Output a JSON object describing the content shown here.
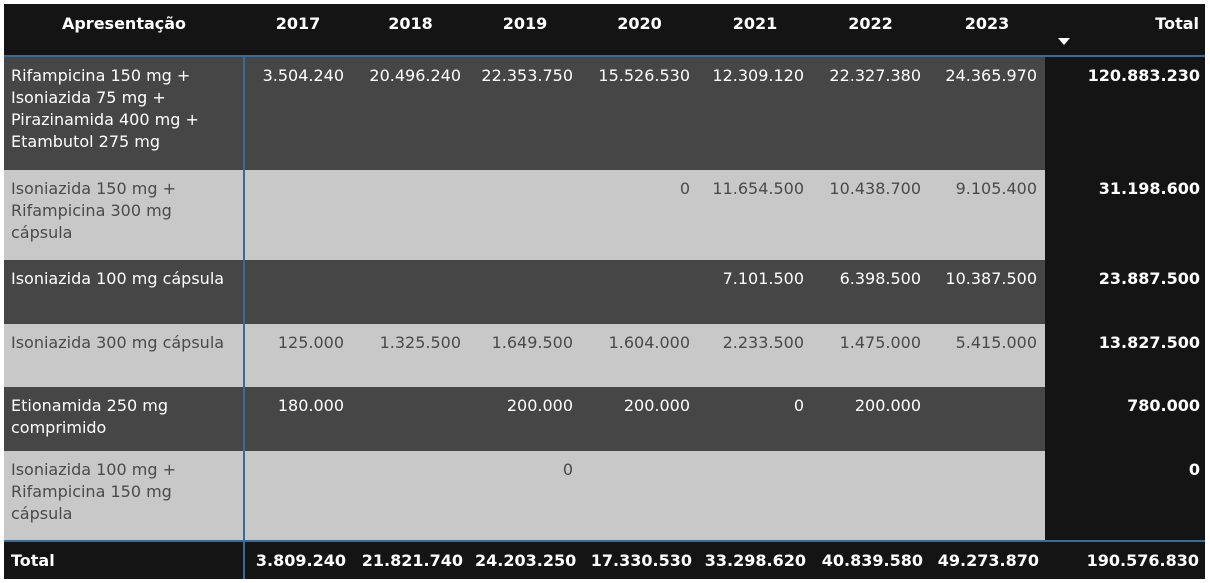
{
  "matrix": {
    "header": {
      "label": "Apresentação",
      "years": [
        "2017",
        "2018",
        "2019",
        "2020",
        "2021",
        "2022",
        "2023"
      ],
      "total": "Total",
      "total_sort": "descending"
    },
    "rows": [
      {
        "label": "Rifampicina 150 mg + Isoniazida 75 mg + Pirazinamida 400 mg + Etambutol 275 mg",
        "values": [
          "3.504.240",
          "20.496.240",
          "22.353.750",
          "15.526.530",
          "12.309.120",
          "22.327.380",
          "24.365.970"
        ],
        "total": "120.883.230"
      },
      {
        "label": "Isoniazida 150 mg + Rifampicina 300 mg cápsula",
        "values": [
          "",
          "",
          "",
          "0",
          "11.654.500",
          "10.438.700",
          "9.105.400"
        ],
        "total": "31.198.600"
      },
      {
        "label": "Isoniazida 100 mg cápsula",
        "values": [
          "",
          "",
          "",
          "",
          "7.101.500",
          "6.398.500",
          "10.387.500"
        ],
        "total": "23.887.500"
      },
      {
        "label": "Isoniazida 300 mg cápsula",
        "values": [
          "125.000",
          "1.325.500",
          "1.649.500",
          "1.604.000",
          "2.233.500",
          "1.475.000",
          "5.415.000"
        ],
        "total": "13.827.500"
      },
      {
        "label": "Etionamida 250 mg comprimido",
        "values": [
          "180.000",
          "",
          "200.000",
          "200.000",
          "0",
          "200.000",
          ""
        ],
        "total": "780.000"
      },
      {
        "label": "Isoniazida 100 mg + Rifampicina 150 mg cápsula",
        "values": [
          "",
          "",
          "0",
          "",
          "",
          "",
          ""
        ],
        "total": "0"
      }
    ],
    "footer": {
      "label": "Total",
      "values": [
        "3.809.240",
        "21.821.740",
        "24.203.250",
        "17.330.530",
        "33.298.620",
        "40.839.580",
        "49.273.870"
      ],
      "total": "190.576.830"
    }
  },
  "colors": {
    "header_bg": "#141414",
    "row_dark": "#464646",
    "row_light": "#c8c8c8",
    "accent_border": "#3a6a9a"
  }
}
